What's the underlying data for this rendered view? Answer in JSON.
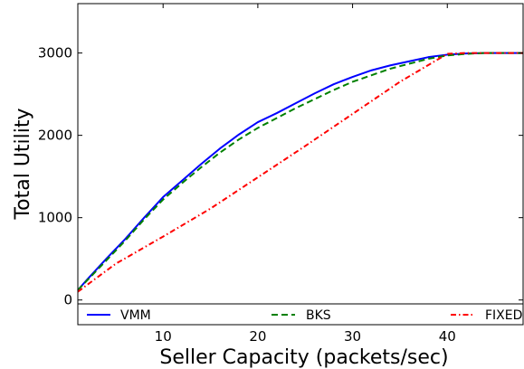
{
  "chart_data": {
    "type": "line",
    "xlabel": "Seller Capacity (packets/sec)",
    "ylabel": "Total Utility",
    "xlim": [
      1,
      48
    ],
    "ylim": [
      -300,
      3600
    ],
    "xticks": [
      10,
      20,
      30,
      40
    ],
    "yticks": [
      0,
      1000,
      2000,
      3000
    ],
    "grid": false,
    "legend_position": "bottom",
    "series": [
      {
        "name": "VMM",
        "color": "#0000ff",
        "style": "solid",
        "x": [
          1,
          2,
          4,
          6,
          8,
          10,
          12,
          14,
          16,
          18,
          20,
          22,
          24,
          26,
          28,
          30,
          32,
          34,
          36,
          38,
          40,
          42,
          44,
          46,
          48
        ],
        "y": [
          120,
          250,
          500,
          740,
          1000,
          1250,
          1450,
          1650,
          1840,
          2010,
          2160,
          2270,
          2390,
          2510,
          2620,
          2710,
          2790,
          2850,
          2900,
          2950,
          2980,
          2995,
          3000,
          3000,
          3000
        ]
      },
      {
        "name": "BKS",
        "color": "#008000",
        "style": "dashed",
        "x": [
          1,
          2,
          4,
          6,
          8,
          10,
          12,
          14,
          16,
          18,
          20,
          22,
          24,
          26,
          28,
          30,
          32,
          34,
          36,
          38,
          40,
          42,
          44,
          46,
          48
        ],
        "y": [
          120,
          240,
          480,
          720,
          980,
          1220,
          1420,
          1610,
          1790,
          1950,
          2090,
          2210,
          2330,
          2440,
          2550,
          2650,
          2730,
          2810,
          2870,
          2930,
          2970,
          2990,
          3000,
          3000,
          3000
        ]
      },
      {
        "name": "FIXED",
        "color": "#ff0000",
        "style": "dashdot",
        "x": [
          1,
          5,
          10,
          15,
          20,
          25,
          30,
          35,
          40,
          42,
          45,
          48
        ],
        "y": [
          100,
          440,
          770,
          1110,
          1490,
          1870,
          2260,
          2650,
          2990,
          3000,
          3000,
          3000
        ]
      }
    ]
  }
}
